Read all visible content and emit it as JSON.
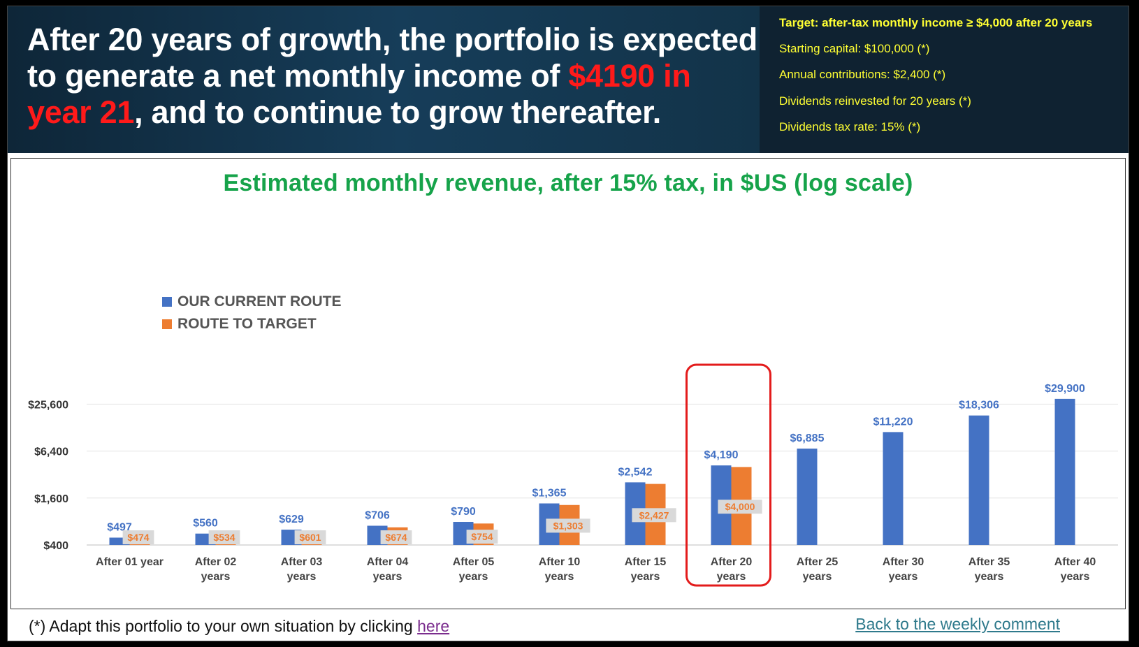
{
  "header": {
    "headline_part1": "After 20 years of growth, the portfolio is expected to generate a net monthly income of ",
    "headline_highlight": "$4190 in year 21",
    "headline_part2": ", and to continue to grow thereafter.",
    "side_lines": [
      "Target: after-tax monthly income ≥ $4,000 after 20 years",
      "Starting capital: $100,000 (*)",
      "Annual contributions: $2,400 (*)",
      "Dividends reinvested for 20 years (*)",
      "Dividends tax rate: 15% (*)"
    ]
  },
  "footer": {
    "left_text": "(*) Adapt this portfolio to your own situation by clicking ",
    "left_link": "here",
    "right_link": "Back to the weekly comment"
  },
  "colors": {
    "series_current": "#4472c4",
    "series_target": "#ed7d31",
    "highlight_box": "#e31b1b",
    "title": "#16a34a"
  },
  "chart_data": {
    "type": "bar",
    "title": "Estimated monthly revenue, after 15% tax, in $US (log scale)",
    "y_scale": "log",
    "ylim": [
      400,
      25600
    ],
    "y_ticks": [
      {
        "value": 400,
        "label": "$400"
      },
      {
        "value": 1600,
        "label": "$1,600"
      },
      {
        "value": 6400,
        "label": "$6,400"
      },
      {
        "value": 25600,
        "label": "$25,600"
      }
    ],
    "grid": true,
    "legend_position": "top-left",
    "categories": [
      [
        "After 01 year"
      ],
      [
        "After 02",
        "years"
      ],
      [
        "After 03",
        "years"
      ],
      [
        "After 04",
        "years"
      ],
      [
        "After 05",
        "years"
      ],
      [
        "After 10",
        "years"
      ],
      [
        "After 15",
        "years"
      ],
      [
        "After 20",
        "years"
      ],
      [
        "After 25",
        "years"
      ],
      [
        "After 30",
        "years"
      ],
      [
        "After 35",
        "years"
      ],
      [
        "After 40",
        "years"
      ]
    ],
    "series": [
      {
        "name": "OUR CURRENT ROUTE",
        "values": [
          497,
          560,
          629,
          706,
          790,
          1365,
          2542,
          4190,
          6885,
          11220,
          18306,
          29900
        ],
        "labels": [
          "$497",
          "$560",
          "$629",
          "$706",
          "$790",
          "$1,365",
          "$2,542",
          "$4,190",
          "$6,885",
          "$11,220",
          "$18,306",
          "$29,900"
        ]
      },
      {
        "name": "ROUTE TO TARGET",
        "values": [
          474,
          534,
          601,
          674,
          754,
          1303,
          2427,
          4000,
          null,
          null,
          null,
          null
        ],
        "labels": [
          "$474",
          "$534",
          "$601",
          "$674",
          "$754",
          "$1,303",
          "$2,427",
          "$4,000",
          null,
          null,
          null,
          null
        ]
      }
    ],
    "highlighted_category_index": 7
  }
}
